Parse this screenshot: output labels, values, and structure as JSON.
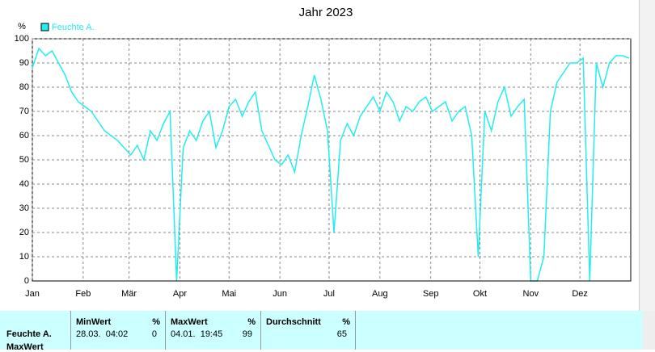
{
  "chart_data": {
    "type": "line",
    "title": "Jahr 2023",
    "ylabel": "%",
    "xlim": [
      1,
      366
    ],
    "xticks": [
      {
        "value": 1,
        "label": "Jan"
      },
      {
        "value": 32,
        "label": "Feb"
      },
      {
        "value": 60,
        "label": "Mär"
      },
      {
        "value": 91,
        "label": "Apr"
      },
      {
        "value": 121,
        "label": "Mai"
      },
      {
        "value": 152,
        "label": "Jun"
      },
      {
        "value": 182,
        "label": "Jul"
      },
      {
        "value": 213,
        "label": "Aug"
      },
      {
        "value": 244,
        "label": "Sep"
      },
      {
        "value": 274,
        "label": "Okt"
      },
      {
        "value": 305,
        "label": "Nov"
      },
      {
        "value": 335,
        "label": "Dez"
      }
    ],
    "ylim": [
      0,
      100
    ],
    "yticks": [
      0,
      10,
      20,
      30,
      40,
      50,
      60,
      70,
      80,
      90,
      100
    ],
    "grid": true,
    "legend": "top-left",
    "x": [
      1,
      5,
      9,
      13,
      17,
      21,
      25,
      29,
      33,
      37,
      41,
      45,
      49,
      53,
      57,
      61,
      65,
      69,
      73,
      77,
      81,
      85,
      89,
      93,
      97,
      101,
      105,
      109,
      113,
      117,
      121,
      125,
      129,
      133,
      137,
      141,
      145,
      149,
      153,
      157,
      161,
      165,
      169,
      173,
      177,
      181,
      185,
      189,
      193,
      197,
      201,
      205,
      209,
      213,
      217,
      221,
      225,
      229,
      233,
      237,
      241,
      245,
      249,
      253,
      257,
      261,
      265,
      269,
      273,
      277,
      281,
      285,
      289,
      293,
      297,
      301,
      305,
      309,
      313,
      317,
      321,
      325,
      329,
      333,
      337,
      341,
      345,
      349,
      353,
      357,
      361,
      365
    ],
    "series": [
      {
        "name": "Feuchte A.",
        "color": "#22eeee",
        "values": [
          88,
          96,
          93,
          95,
          90,
          85,
          78,
          74,
          72,
          70,
          66,
          62,
          60,
          58,
          55,
          52,
          56,
          50,
          62,
          58,
          65,
          70,
          0,
          55,
          62,
          58,
          66,
          70,
          55,
          62,
          72,
          75,
          68,
          74,
          78,
          62,
          56,
          50,
          48,
          52,
          45,
          60,
          72,
          85,
          75,
          62,
          20,
          58,
          65,
          60,
          68,
          72,
          76,
          70,
          78,
          74,
          66,
          72,
          70,
          74,
          76,
          70,
          72,
          74,
          66,
          70,
          72,
          60,
          10,
          70,
          62,
          74,
          80,
          68,
          72,
          75,
          0,
          0,
          10,
          70,
          82,
          86,
          90,
          90,
          92,
          0,
          90,
          80,
          90,
          93,
          93,
          92
        ]
      }
    ]
  },
  "table": {
    "row_label": "Feuchte A.",
    "next_row": "MaxWert",
    "columns": [
      {
        "header": "MinWert",
        "unit": "%",
        "time": "28.03.  04:02",
        "value": "0"
      },
      {
        "header": "MaxWert",
        "unit": "%",
        "time": "04.01.  19:45",
        "value": "99"
      },
      {
        "header": "Durchschnitt",
        "unit": "%",
        "time": "",
        "value": "65"
      }
    ]
  }
}
